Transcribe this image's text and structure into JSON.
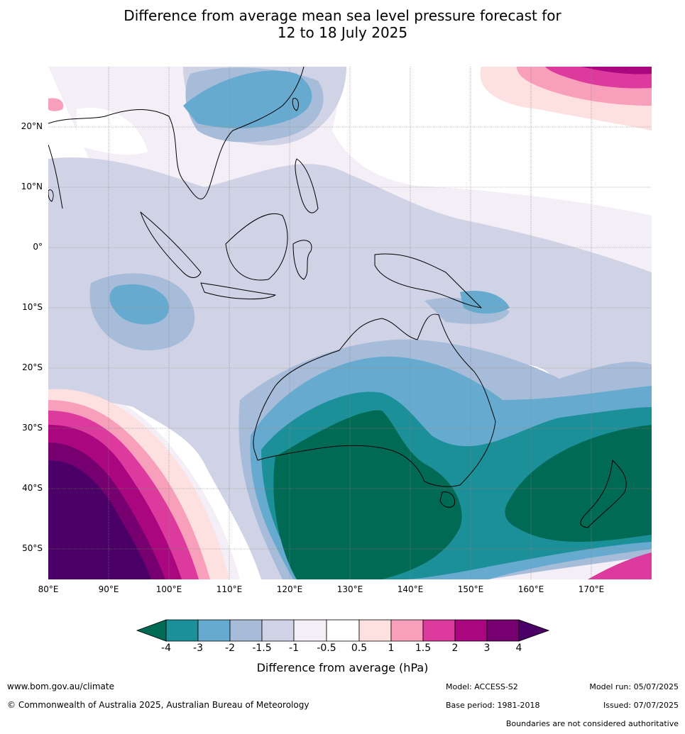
{
  "title": {
    "line1": "Difference from average mean sea level pressure forecast for",
    "line2": "12 to 18 July 2025"
  },
  "map": {
    "lat_labels": [
      "20°N",
      "10°N",
      "0°",
      "10°S",
      "20°S",
      "30°S",
      "40°S",
      "50°S"
    ],
    "lon_labels": [
      "80°E",
      "90°E",
      "100°E",
      "110°E",
      "120°E",
      "130°E",
      "140°E",
      "150°E",
      "160°E",
      "170°E"
    ],
    "extent": {
      "lon": [
        80,
        180
      ],
      "lat": [
        -55,
        30
      ]
    }
  },
  "colorbar": {
    "title": "Difference from average (hPa)",
    "ticks": [
      "-4",
      "-3",
      "-2",
      "-1.5",
      "-1",
      "-0.5",
      "0.5",
      "1",
      "1.5",
      "2",
      "3",
      "4"
    ],
    "colors": {
      "lt_-4": "#006a55",
      "-4_-3": "#1c9098",
      "-3_-2": "#67aacf",
      "-2_-1.5": "#a6bcd9",
      "-1.5_-1": "#d0d2e6",
      "-1_-0.5": "#f4eef6",
      "-0.5_0.5": "#ffffff",
      "0.5_1": "#fde0e0",
      "1_1.5": "#f89fbb",
      "1.5_2": "#dc3a9d",
      "2_3": "#aa0680",
      "3_4": "#770070",
      "gt_4": "#4a0066"
    }
  },
  "footer": {
    "website": "www.bom.gov.au/climate",
    "copyright": "© Commonwealth of Australia 2025, Australian Bureau of Meteorology",
    "model": "Model: ACCESS-S2",
    "base_period": "Base period: 1981-2018",
    "model_run": "Model run: 05/07/2025",
    "issued": "Issued: 07/07/2025",
    "disclaimer": "Boundaries are not considered authoritative"
  }
}
